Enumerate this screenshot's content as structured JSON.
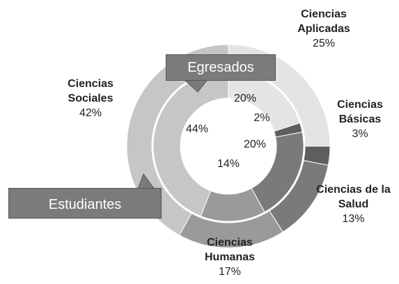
{
  "chart_data": {
    "type": "nested-donut",
    "categories": [
      "Ciencias Aplicadas",
      "Ciencias Básicas",
      "Ciencias de la Salud",
      "Ciencias Humanas",
      "Ciencias Sociales"
    ],
    "colors": [
      "#e4e4e4",
      "#5e5e5e",
      "#7a7a7a",
      "#9a9a9a",
      "#c6c6c6"
    ],
    "series": [
      {
        "name": "Estudiantes",
        "values": [
          25,
          3,
          13,
          17,
          42
        ],
        "value_labels": [
          "25%",
          "3%",
          "13%",
          "17%",
          "42%"
        ]
      },
      {
        "name": "Egresados",
        "values": [
          20,
          2,
          20,
          14,
          44
        ],
        "value_labels": [
          "20%",
          "2%",
          "20%",
          "14%",
          "44%"
        ]
      }
    ]
  }
}
